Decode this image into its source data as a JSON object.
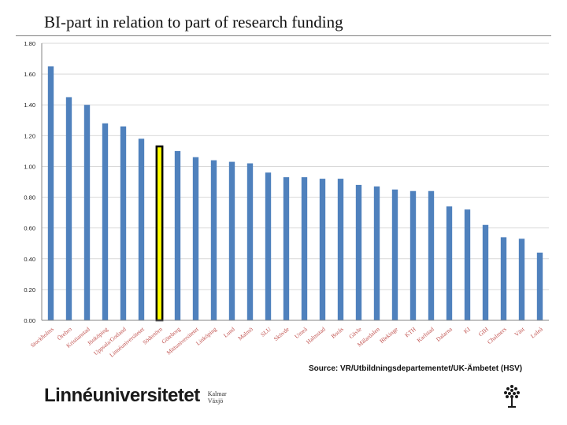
{
  "title": "BI-part in relation to part of research funding",
  "source_text": "Source: VR/Utbildningsdepartementet/UK-Ämbetet (HSV)",
  "logo": {
    "wordmark": "Linnéuniversitetet",
    "sub_line1": "Kalmar",
    "sub_line2": "Växjö",
    "emblem_icon": "tree-icon"
  },
  "colors": {
    "bar": "#4f81bd",
    "highlight_fill": "#ffff00",
    "highlight_stroke": "#000000",
    "grid": "#d9d9d9",
    "axis": "#868686",
    "tick_text": "#222222",
    "category_text": "#c0504d"
  },
  "chart_data": {
    "type": "bar",
    "title": "BI-part in relation to part of research funding",
    "xlabel": "",
    "ylabel": "",
    "ylim": [
      0,
      1.8
    ],
    "yticks": [
      "0.00",
      "0.20",
      "0.40",
      "0.60",
      "0.80",
      "1.00",
      "1.20",
      "1.40",
      "1.60",
      "1.80"
    ],
    "grid": true,
    "legend": "none",
    "highlight_category": "Södertörn",
    "categories": [
      "Stockholms",
      "Örebro",
      "Kristianstad",
      "Jönköping",
      "Uppsala/Gotland",
      "Linnéuniversitetet",
      "Södertörn",
      "Göteborg",
      "Mittuniversitetet",
      "Linköping",
      "Lund",
      "Malmö",
      "SLU",
      "Skövde",
      "Umeå",
      "Halmstad",
      "Borås",
      "Gävle",
      "Mälardalen",
      "Blekinge",
      "KTH",
      "Karlstad",
      "Dalarna",
      "KI",
      "GIH",
      "Chalmers",
      "Väst",
      "Luleå"
    ],
    "values": [
      1.65,
      1.45,
      1.4,
      1.28,
      1.26,
      1.18,
      1.13,
      1.1,
      1.06,
      1.04,
      1.03,
      1.02,
      0.96,
      0.93,
      0.93,
      0.92,
      0.92,
      0.88,
      0.87,
      0.85,
      0.84,
      0.84,
      0.74,
      0.72,
      0.62,
      0.54,
      0.53,
      0.44
    ]
  }
}
